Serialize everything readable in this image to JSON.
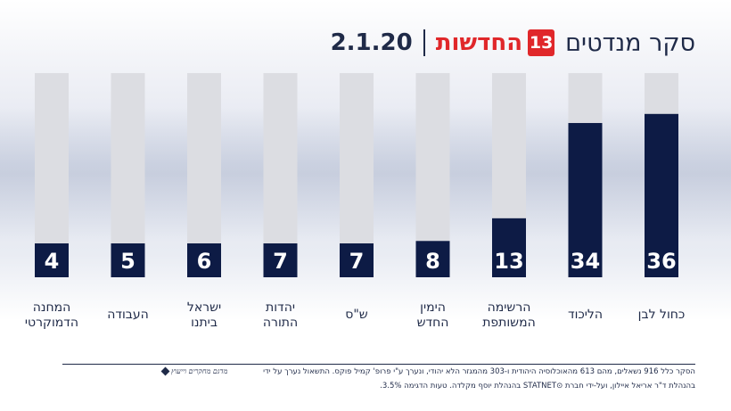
{
  "header": {
    "title": "סקר מנדטים",
    "logo_word": "החדשות",
    "logo_number": "13",
    "date": "2.1.20"
  },
  "footnote": {
    "line1": "הסקר כלל 916 נשאלים, מהם 613 מהאוכלוסיה היהודית ו-303 מהמגזר הלא יהודי, ונערך ע\"י פרופ' קמיל פוקס. התשאול נערך על ידי",
    "line2": "בהנהלת ד\"ר אריאל איילון, ועל-ידי חברת ⊙STATNET בהנהלת יוסף מקלדה. טעות הדגימה 3.5%.",
    "credit": "מדגם מחקרים וייעוץ"
  },
  "colors": {
    "bar_filled": "#0d1b45",
    "bar_track": "#dcdde2",
    "label_text": "#1f2a48",
    "value_text": "#ffffff",
    "logo_red": "#e0272a"
  },
  "chart_data": {
    "type": "bar",
    "categories": [
      "כחול לבן",
      "הליכוד",
      "הרשימה המשותפת",
      "הימין החדש",
      "ש\"ס",
      "יהדות התורה",
      "ישראל ביתנו",
      "העבודה",
      "המחנה הדמוקרטי"
    ],
    "values": [
      36,
      34,
      13,
      8,
      7,
      7,
      6,
      5,
      4
    ],
    "ylim": [
      0,
      45
    ],
    "order": "right-to-left",
    "title": "",
    "xlabel": "",
    "ylabel": ""
  }
}
